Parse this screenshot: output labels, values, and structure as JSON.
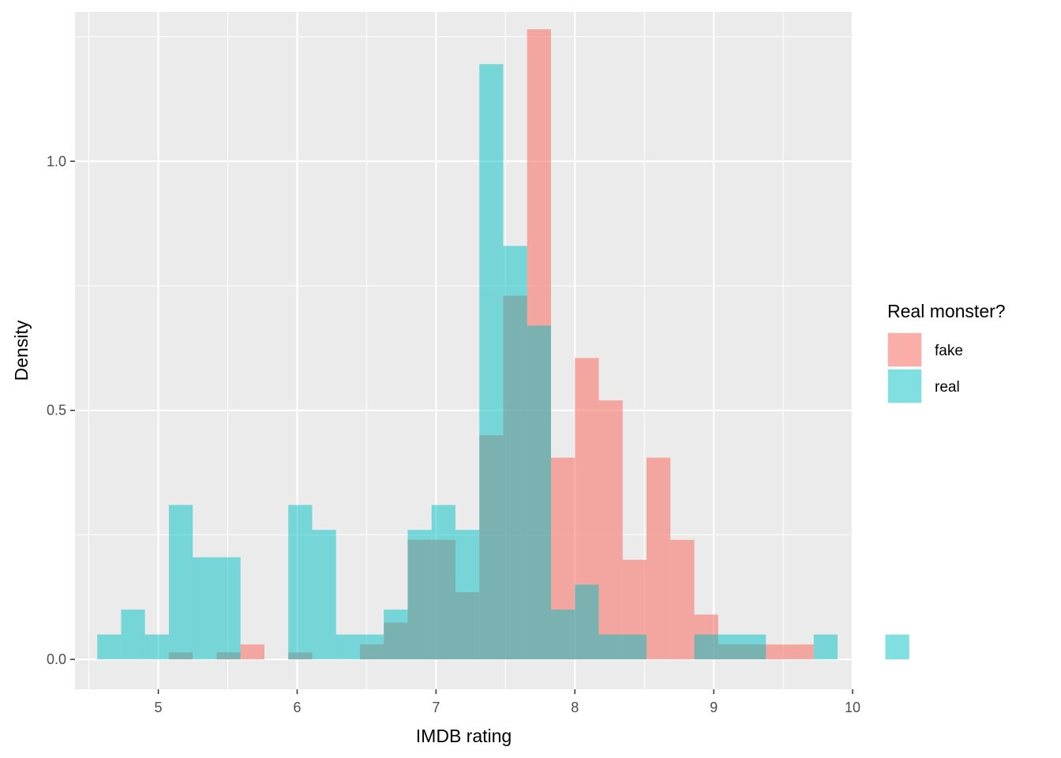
{
  "chart_data": {
    "type": "histogram",
    "title": "",
    "xlabel": "IMDB rating",
    "ylabel": "Density",
    "xlim": [
      4.4,
      10.0
    ],
    "ylim": [
      -0.06,
      1.3
    ],
    "x_ticks": [
      5,
      6,
      7,
      8,
      9,
      10
    ],
    "x_tick_labels": [
      "5",
      "6",
      "7",
      "8",
      "9",
      "10"
    ],
    "y_ticks": [
      0,
      0.5,
      1.0
    ],
    "y_tick_labels": [
      "0.0",
      "0.5",
      "1.0"
    ],
    "bin_width": 0.172,
    "bin_start": 4.56,
    "legend": {
      "title": "Real monster?",
      "position": "right",
      "entries": [
        {
          "label": "fake",
          "color": "#F8766D"
        },
        {
          "label": "real",
          "color": "#00BFC4"
        }
      ]
    },
    "series": [
      {
        "name": "fake",
        "color": "#F8766D",
        "opacity": 0.6,
        "values": [
          0,
          0,
          0,
          0.014,
          0,
          0.014,
          0.03,
          0,
          0.014,
          0,
          0,
          0.03,
          0.074,
          0.24,
          0.24,
          0.135,
          0.45,
          0.73,
          1.265,
          0.405,
          0.605,
          0.52,
          0.2,
          0.405,
          0.24,
          0.09,
          0.03,
          0.03,
          0.03,
          0.03,
          0,
          0,
          0,
          0
        ]
      },
      {
        "name": "real",
        "color": "#00BFC4",
        "opacity": 0.5,
        "values": [
          0.05,
          0.1,
          0.05,
          0.31,
          0.205,
          0.205,
          0,
          0,
          0.31,
          0.26,
          0.05,
          0.05,
          0.1,
          0.26,
          0.31,
          0.26,
          1.195,
          0.83,
          0.67,
          0.1,
          0.15,
          0.05,
          0.05,
          0,
          0,
          0.05,
          0.05,
          0.05,
          0,
          0,
          0.05,
          0,
          0,
          0.05
        ]
      }
    ]
  }
}
